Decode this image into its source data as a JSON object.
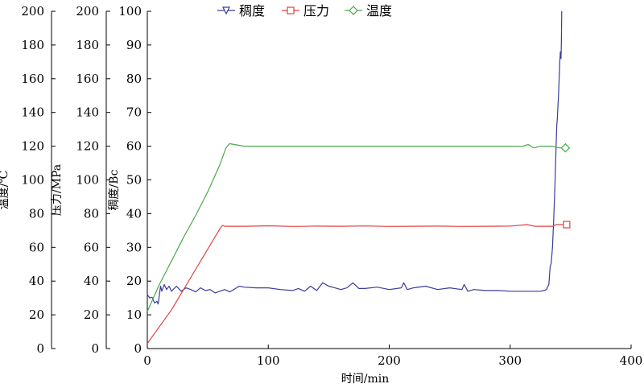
{
  "chart_data": {
    "type": "line",
    "x_axis": {
      "label": "时间/min",
      "range": [
        0,
        400
      ],
      "ticks": [
        0,
        100,
        200,
        300,
        400
      ],
      "tick_labels": [
        "0",
        "100",
        "200",
        "300",
        "400"
      ]
    },
    "y_axes": [
      {
        "id": "temperature",
        "label": "温度/℃",
        "range": [
          0,
          200
        ],
        "ticks": [
          0,
          20,
          40,
          60,
          80,
          100,
          120,
          140,
          160,
          180,
          200
        ],
        "tick_labels": [
          "0",
          "20",
          "40",
          "60",
          "80",
          "100",
          "120",
          "140",
          "160",
          "180",
          "200"
        ]
      },
      {
        "id": "pressure",
        "label": "压力/MPa",
        "range": [
          0,
          200
        ],
        "ticks": [
          0,
          20,
          40,
          60,
          80,
          100,
          120,
          140,
          160,
          180,
          200
        ],
        "tick_labels": [
          "0",
          "20",
          "40",
          "60",
          "80",
          "100",
          "120",
          "140",
          "160",
          "180",
          "200"
        ]
      },
      {
        "id": "consistency",
        "label": "稠度/Bc",
        "range": [
          0,
          100
        ],
        "ticks": [
          0,
          10,
          20,
          30,
          40,
          50,
          60,
          70,
          80,
          90,
          100
        ],
        "tick_labels": [
          "0",
          "10",
          "20",
          "30",
          "40",
          "50",
          "60",
          "70",
          "80",
          "90",
          "100"
        ]
      }
    ],
    "legend": {
      "placement": "top-center"
    },
    "series": [
      {
        "name": "稠度",
        "axis": "consistency",
        "color": "#3b3b9e",
        "marker": "triangle-down",
        "points": [
          [
            0,
            16
          ],
          [
            2,
            15
          ],
          [
            4,
            15.2
          ],
          [
            6,
            13.5
          ],
          [
            8,
            14
          ],
          [
            9,
            13.2
          ],
          [
            10,
            16
          ],
          [
            11,
            18.5
          ],
          [
            12,
            17
          ],
          [
            14,
            19
          ],
          [
            16,
            17.5
          ],
          [
            18,
            18.5
          ],
          [
            20,
            17
          ],
          [
            24,
            18.5
          ],
          [
            28,
            17
          ],
          [
            32,
            18
          ],
          [
            36,
            17.5
          ],
          [
            40,
            16.8
          ],
          [
            44,
            18
          ],
          [
            48,
            17.2
          ],
          [
            52,
            17.5
          ],
          [
            56,
            16.5
          ],
          [
            60,
            17
          ],
          [
            64,
            17.5
          ],
          [
            68,
            16.8
          ],
          [
            72,
            17.6
          ],
          [
            76,
            18.5
          ],
          [
            80,
            18.2
          ],
          [
            90,
            18
          ],
          [
            100,
            18
          ],
          [
            110,
            17.5
          ],
          [
            120,
            17.2
          ],
          [
            125,
            17.8
          ],
          [
            130,
            17
          ],
          [
            135,
            18.5
          ],
          [
            140,
            17.2
          ],
          [
            145,
            19.5
          ],
          [
            150,
            18.5
          ],
          [
            155,
            18
          ],
          [
            160,
            17.5
          ],
          [
            165,
            18
          ],
          [
            170,
            19.5
          ],
          [
            175,
            17.8
          ],
          [
            180,
            17.8
          ],
          [
            190,
            18.2
          ],
          [
            200,
            17.5
          ],
          [
            210,
            18
          ],
          [
            212,
            19.5
          ],
          [
            215,
            17.5
          ],
          [
            220,
            18
          ],
          [
            230,
            18.5
          ],
          [
            240,
            17.5
          ],
          [
            250,
            18
          ],
          [
            260,
            17.5
          ],
          [
            262,
            19
          ],
          [
            265,
            17
          ],
          [
            270,
            17.5
          ],
          [
            280,
            17.2
          ],
          [
            290,
            17.2
          ],
          [
            300,
            17
          ],
          [
            310,
            17
          ],
          [
            320,
            17
          ],
          [
            325,
            17
          ],
          [
            328,
            17.2
          ],
          [
            330,
            17.5
          ],
          [
            332,
            19
          ],
          [
            333,
            24
          ],
          [
            334,
            25.5
          ],
          [
            335,
            30
          ],
          [
            336,
            38
          ],
          [
            337,
            48
          ],
          [
            338,
            60
          ],
          [
            338.5,
            66
          ],
          [
            339,
            68
          ],
          [
            339.5,
            72
          ],
          [
            340,
            75
          ],
          [
            340.5,
            80
          ],
          [
            341,
            85
          ],
          [
            341.5,
            88
          ],
          [
            342,
            86
          ],
          [
            342.3,
            90
          ],
          [
            342.6,
            100
          ]
        ]
      },
      {
        "name": "压力",
        "axis": "pressure",
        "color": "#e04040",
        "marker": "square",
        "points": [
          [
            0,
            3
          ],
          [
            20,
            23
          ],
          [
            40,
            47
          ],
          [
            60,
            71
          ],
          [
            62,
            73
          ],
          [
            64,
            72.5
          ],
          [
            80,
            72.5
          ],
          [
            100,
            72.8
          ],
          [
            120,
            72.4
          ],
          [
            140,
            72.6
          ],
          [
            160,
            72.5
          ],
          [
            180,
            72.7
          ],
          [
            200,
            72.4
          ],
          [
            220,
            72.5
          ],
          [
            240,
            72.6
          ],
          [
            260,
            72.4
          ],
          [
            280,
            72.5
          ],
          [
            300,
            72.6
          ],
          [
            314,
            73.5
          ],
          [
            320,
            72.5
          ],
          [
            335,
            72.5
          ],
          [
            338,
            73.5
          ],
          [
            344,
            73.5
          ]
        ]
      },
      {
        "name": "温度",
        "axis": "temperature",
        "color": "#4aa84a",
        "marker": "diamond",
        "points": [
          [
            0,
            22
          ],
          [
            5,
            30
          ],
          [
            10,
            38
          ],
          [
            20,
            52
          ],
          [
            30,
            66
          ],
          [
            40,
            79
          ],
          [
            50,
            93
          ],
          [
            60,
            109
          ],
          [
            65,
            119
          ],
          [
            68,
            121.5
          ],
          [
            72,
            121
          ],
          [
            80,
            120
          ],
          [
            100,
            120
          ],
          [
            150,
            120
          ],
          [
            200,
            120
          ],
          [
            250,
            120
          ],
          [
            300,
            120
          ],
          [
            310,
            119.8
          ],
          [
            315,
            121
          ],
          [
            318,
            119.5
          ],
          [
            320,
            119
          ],
          [
            325,
            120
          ],
          [
            330,
            120
          ],
          [
            335,
            120
          ],
          [
            340,
            119
          ],
          [
            343,
            119
          ]
        ]
      }
    ]
  }
}
